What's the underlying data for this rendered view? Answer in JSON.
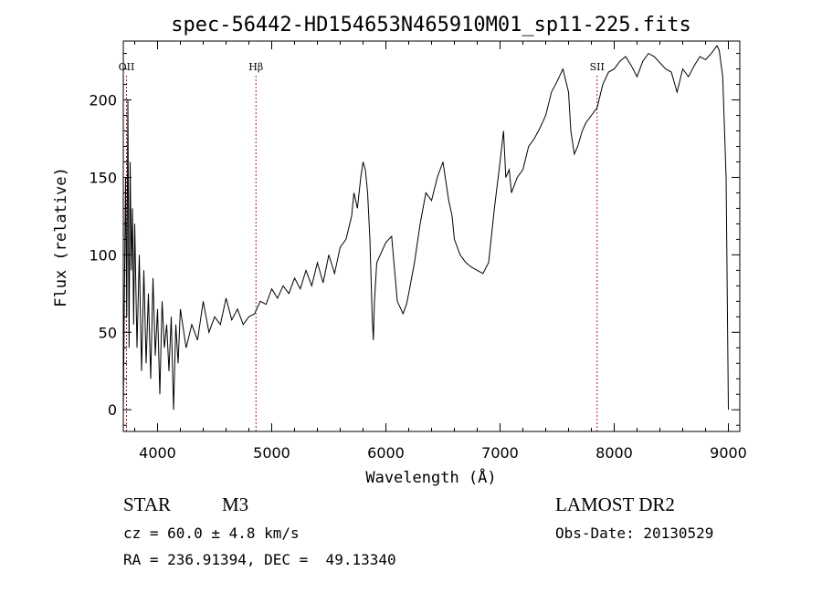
{
  "chart_data": {
    "type": "line",
    "title": "spec-56442-HD154653N465910M01_sp11-225.fits",
    "xlabel": "Wavelength (Å)",
    "ylabel": "Flux (relative)",
    "xlim": [
      3700,
      9100
    ],
    "ylim": [
      -14,
      238
    ],
    "x_ticks": [
      4000,
      5000,
      6000,
      7000,
      8000,
      9000
    ],
    "y_ticks": [
      0,
      50,
      100,
      150,
      200
    ],
    "grid": false,
    "series": [
      {
        "color": "#000000",
        "x": [
          3700,
          3710,
          3720,
          3730,
          3740,
          3750,
          3760,
          3770,
          3780,
          3790,
          3800,
          3820,
          3840,
          3860,
          3880,
          3900,
          3920,
          3940,
          3960,
          3980,
          4000,
          4020,
          4040,
          4060,
          4080,
          4100,
          4120,
          4140,
          4160,
          4180,
          4200,
          4250,
          4300,
          4350,
          4400,
          4450,
          4500,
          4550,
          4600,
          4650,
          4700,
          4750,
          4800,
          4850,
          4900,
          4950,
          5000,
          5050,
          5100,
          5150,
          5200,
          5250,
          5300,
          5350,
          5400,
          5450,
          5500,
          5550,
          5600,
          5650,
          5700,
          5720,
          5750,
          5780,
          5800,
          5820,
          5840,
          5860,
          5880,
          5890,
          5900,
          5920,
          5950,
          6000,
          6050,
          6100,
          6150,
          6180,
          6200,
          6250,
          6300,
          6350,
          6400,
          6450,
          6500,
          6520,
          6550,
          6580,
          6600,
          6650,
          6700,
          6750,
          6800,
          6850,
          6900,
          6950,
          7000,
          7030,
          7050,
          7080,
          7100,
          7150,
          7200,
          7250,
          7300,
          7350,
          7400,
          7450,
          7500,
          7550,
          7600,
          7620,
          7650,
          7680,
          7700,
          7720,
          7750,
          7800,
          7850,
          7900,
          7950,
          8000,
          8050,
          8100,
          8150,
          8200,
          8250,
          8300,
          8350,
          8400,
          8450,
          8500,
          8550,
          8600,
          8650,
          8700,
          8750,
          8800,
          8850,
          8900,
          8920,
          8950,
          8980,
          9000
        ],
        "y": [
          0,
          80,
          150,
          60,
          200,
          40,
          160,
          90,
          130,
          55,
          120,
          40,
          100,
          25,
          90,
          30,
          75,
          20,
          85,
          35,
          65,
          10,
          70,
          40,
          55,
          25,
          60,
          0,
          55,
          30,
          65,
          40,
          55,
          45,
          70,
          50,
          60,
          55,
          72,
          58,
          65,
          55,
          60,
          62,
          70,
          68,
          78,
          72,
          80,
          75,
          85,
          78,
          90,
          80,
          95,
          82,
          100,
          88,
          105,
          110,
          125,
          140,
          130,
          150,
          160,
          155,
          140,
          110,
          60,
          45,
          70,
          95,
          100,
          108,
          112,
          70,
          62,
          68,
          75,
          95,
          120,
          140,
          135,
          150,
          160,
          150,
          135,
          125,
          110,
          100,
          95,
          92,
          90,
          88,
          95,
          130,
          160,
          180,
          150,
          155,
          140,
          150,
          155,
          170,
          175,
          182,
          190,
          205,
          212,
          220,
          205,
          180,
          165,
          170,
          175,
          180,
          185,
          190,
          195,
          210,
          218,
          220,
          225,
          228,
          222,
          215,
          225,
          230,
          228,
          224,
          220,
          218,
          205,
          220,
          215,
          222,
          228,
          226,
          230,
          235,
          232,
          215,
          150,
          0
        ]
      }
    ],
    "annotations": [
      {
        "label": "OII",
        "x": 3728
      },
      {
        "label": "Hβ",
        "x": 4862
      },
      {
        "label": "SII",
        "x": 7850
      }
    ],
    "line_color": "#000000",
    "marker_line_color": "#b22222"
  },
  "info": {
    "object_class": "STAR",
    "subclass": "M3",
    "survey": "LAMOST DR2",
    "velocity": "cz = 60.0 ± 4.8 km/s",
    "obs_date": "Obs-Date: 20130529",
    "coords": "RA = 236.91394, DEC =  49.13340"
  }
}
